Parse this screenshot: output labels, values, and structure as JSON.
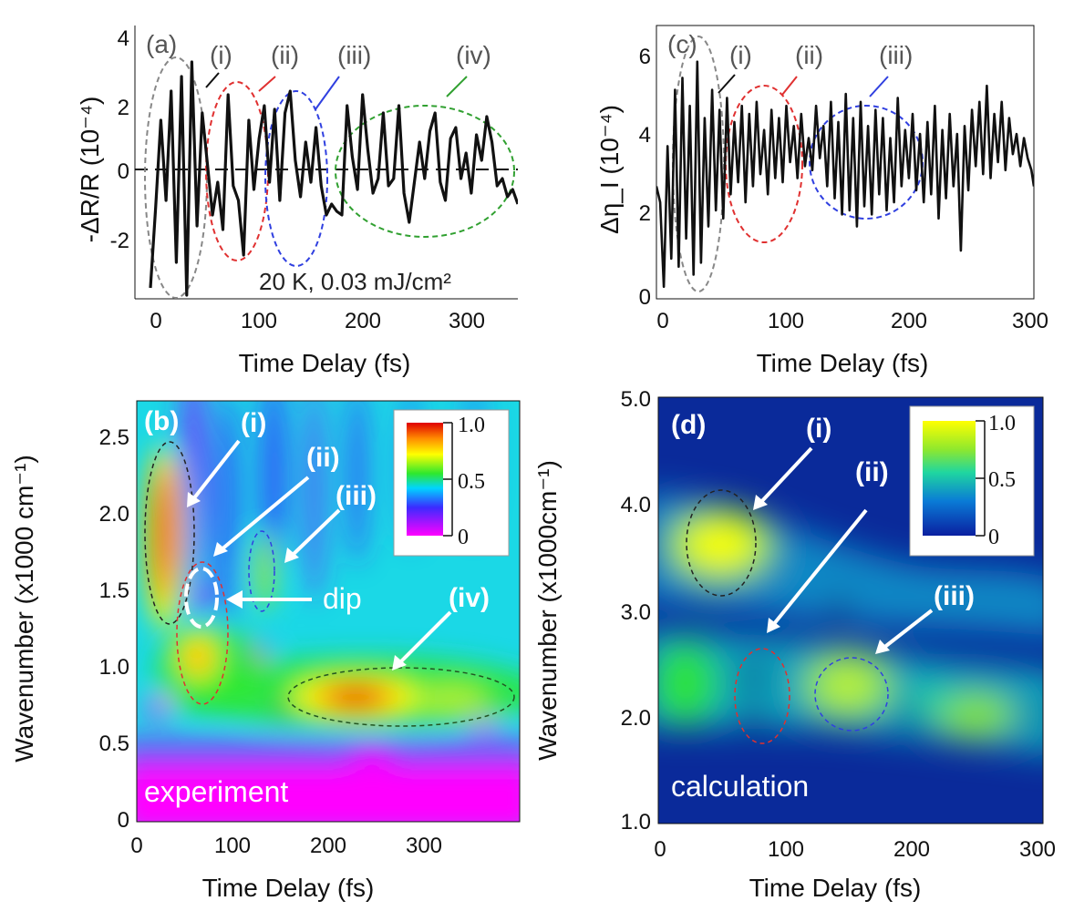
{
  "chart_data": [
    {
      "panel": "(a)",
      "type": "line",
      "xlabel": "Time Delay (fs)",
      "ylabel": "-ΔR/R (10⁻⁴)",
      "xlim": [
        -20,
        350
      ],
      "ylim": [
        -3.5,
        4
      ],
      "xticks": [
        "0",
        "100",
        "200",
        "300"
      ],
      "yticks": [
        "-2",
        "0",
        "2",
        "4"
      ],
      "annotation": "20 K, 0.03 mJ/cm²",
      "region_labels": [
        "(i)",
        "(ii)",
        "(iii)",
        "(iv)"
      ],
      "x": [
        -5,
        0,
        5,
        10,
        15,
        20,
        25,
        30,
        35,
        40,
        45,
        50,
        55,
        60,
        65,
        70,
        75,
        80,
        85,
        90,
        95,
        100,
        105,
        110,
        115,
        120,
        125,
        130,
        135,
        140,
        145,
        150,
        155,
        160,
        165,
        170,
        175,
        180,
        185,
        190,
        195,
        200,
        205,
        210,
        215,
        220,
        225,
        230,
        235,
        240,
        245,
        250,
        255,
        260,
        265,
        270,
        275,
        280,
        285,
        290,
        295,
        300,
        305,
        310,
        315,
        320,
        325,
        330,
        335,
        340,
        345,
        350
      ],
      "series": [
        {
          "values": [
            -3.2,
            -1.0,
            1.4,
            -0.8,
            2.2,
            -2.5,
            2.6,
            -3.4,
            3.0,
            -1.5,
            1.6,
            0.2,
            -1.2,
            -0.3,
            -1.6,
            2.1,
            -0.4,
            -0.8,
            -2.3,
            1.4,
            -0.5,
            0.9,
            1.8,
            -0.3,
            1.7,
            -0.8,
            1.6,
            2.2,
            0.3,
            -0.7,
            0.8,
            -0.3,
            1.2,
            -0.4,
            -1.2,
            -0.9,
            -1.1,
            -1.2,
            1.8,
            0.4,
            -0.5,
            2.1,
            0.6,
            -0.6,
            -0.2,
            1.6,
            -0.4,
            -0.2,
            1.8,
            -0.6,
            -1.4,
            -0.3,
            0.8,
            -0.2,
            1.1,
            1.6,
            -0.3,
            -0.8,
            0.9,
            1.2,
            -0.2,
            0.5,
            -0.6,
            1.0,
            0.3,
            1.5,
            0.8,
            -0.4,
            -0.2,
            -0.7,
            -0.5,
            -0.9
          ]
        }
      ]
    },
    {
      "panel": "(c)",
      "type": "line",
      "xlabel": "Time Delay (fs)",
      "ylabel": "Δη_I (10⁻⁴)",
      "xlim": [
        -5,
        300
      ],
      "ylim": [
        0,
        6.8
      ],
      "xticks": [
        "0",
        "100",
        "200",
        "300"
      ],
      "yticks": [
        "0",
        "2",
        "4",
        "6"
      ],
      "region_labels": [
        "(i)",
        "(ii)",
        "(iii)"
      ],
      "x": [
        -5,
        -2,
        1,
        4,
        7,
        10,
        13,
        16,
        19,
        22,
        25,
        28,
        31,
        34,
        37,
        40,
        43,
        46,
        49,
        52,
        55,
        58,
        61,
        64,
        67,
        70,
        73,
        76,
        79,
        82,
        85,
        88,
        91,
        94,
        97,
        100,
        103,
        106,
        109,
        112,
        115,
        118,
        121,
        124,
        127,
        130,
        133,
        136,
        139,
        142,
        145,
        148,
        151,
        154,
        157,
        160,
        163,
        166,
        169,
        172,
        175,
        178,
        181,
        184,
        187,
        190,
        193,
        196,
        199,
        202,
        205,
        208,
        211,
        214,
        217,
        220,
        223,
        226,
        229,
        232,
        235,
        238,
        241,
        244,
        247,
        250,
        253,
        256,
        259,
        262,
        265,
        268,
        271,
        274,
        277,
        280,
        283,
        286,
        289,
        292,
        295,
        298,
        300
      ],
      "series": [
        {
          "values": [
            2.8,
            2.4,
            0.3,
            3.8,
            1.0,
            5.2,
            0.8,
            5.5,
            1.5,
            4.8,
            0.6,
            5.9,
            0.9,
            4.5,
            1.8,
            5.2,
            2.2,
            4.7,
            2.0,
            5.0,
            2.6,
            4.4,
            2.9,
            4.8,
            2.4,
            4.6,
            2.8,
            4.9,
            3.1,
            4.2,
            2.6,
            4.7,
            3.0,
            4.5,
            2.9,
            4.8,
            3.4,
            4.3,
            3.0,
            4.6,
            3.3,
            4.0,
            3.2,
            4.8,
            3.5,
            4.3,
            2.8,
            4.9,
            2.5,
            4.4,
            2.1,
            5.1,
            2.2,
            4.5,
            1.8,
            4.9,
            2.3,
            4.3,
            2.1,
            4.7,
            2.6,
            4.5,
            2.2,
            4.0,
            2.4,
            5.0,
            2.8,
            4.2,
            3.0,
            4.6,
            2.7,
            4.1,
            2.4,
            4.4,
            2.6,
            4.8,
            2.0,
            4.2,
            2.5,
            4.6,
            2.8,
            4.1,
            1.2,
            4.3,
            2.7,
            4.7,
            3.3,
            4.9,
            3.1,
            5.3,
            3.0,
            4.6,
            3.4,
            4.9,
            3.2,
            4.5,
            3.6,
            4.1,
            3.3,
            4.0,
            3.5,
            3.2,
            2.8
          ]
        }
      ]
    },
    {
      "panel": "(b)",
      "type": "heatmap",
      "xlabel": "Time Delay (fs)",
      "ylabel": "Wavenumber (x1000 cm⁻¹)",
      "xlim": [
        0,
        400
      ],
      "ylim": [
        0,
        2.75
      ],
      "xticks": [
        "0",
        "100",
        "200",
        "300"
      ],
      "yticks": [
        "0",
        "0.5",
        "1.0",
        "1.5",
        "2.0",
        "2.5"
      ],
      "colorbar_ticks": [
        "1.0",
        "0.5",
        "0"
      ],
      "colormap": [
        "#ff00ff",
        "#3b2bff",
        "#00d4ff",
        "#2ee82e",
        "#ffff00",
        "#ff8c00",
        "#e00000"
      ],
      "background_color": "#1bd8e6",
      "hotspots": [
        {
          "x": 30,
          "y": 1.9,
          "intensity": 1.0
        },
        {
          "x": 62,
          "y": 1.05,
          "intensity": 0.85
        },
        {
          "x": 140,
          "y": 1.55,
          "intensity": 0.5
        },
        {
          "x": 240,
          "y": 0.8,
          "intensity": 0.95
        },
        {
          "x": 320,
          "y": 0.85,
          "intensity": 0.6
        }
      ],
      "annotations": [
        "(b)",
        "(i)",
        "(ii)",
        "(iii)",
        "(iv)",
        "dip",
        "experiment"
      ]
    },
    {
      "panel": "(d)",
      "type": "heatmap",
      "xlabel": "Time Delay (fs)",
      "ylabel": "Wavenumber (x1000cm⁻¹)",
      "xlim": [
        0,
        300
      ],
      "ylim": [
        1.0,
        5.0
      ],
      "xticks": [
        "0",
        "100",
        "200",
        "300"
      ],
      "yticks": [
        "1.0",
        "2.0",
        "3.0",
        "4.0",
        "5.0"
      ],
      "colorbar_ticks": [
        "1.0",
        "0.5",
        "0"
      ],
      "colormap": [
        "#0a1fa0",
        "#0a7bd6",
        "#1fd6a0",
        "#8ee82e",
        "#ffff00"
      ],
      "background_color": "#0a2a9a",
      "hotspots": [
        {
          "x": 45,
          "y": 3.6,
          "intensity": 1.0
        },
        {
          "x": 10,
          "y": 2.3,
          "intensity": 0.75
        },
        {
          "x": 150,
          "y": 2.2,
          "intensity": 0.85
        },
        {
          "x": 245,
          "y": 2.1,
          "intensity": 0.7
        }
      ],
      "annotations": [
        "(d)",
        "(i)",
        "(ii)",
        "(iii)",
        "calculation"
      ]
    }
  ]
}
